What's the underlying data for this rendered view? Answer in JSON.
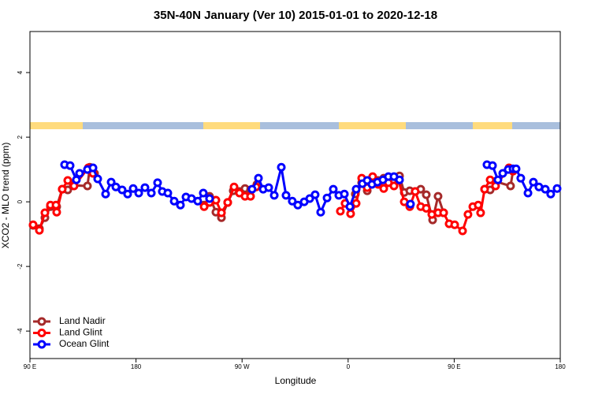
{
  "chart_data": {
    "type": "line",
    "title": "35N-40N January (Ver 10)   2015-01-01 to 2020-12-18",
    "xlabel": "Longitude",
    "ylabel": "XCO2 - MLO trend (ppm)",
    "xlim": [
      90,
      540
    ],
    "ylim": [
      -4.85,
      5.27
    ],
    "xticks": [
      {
        "value": 90,
        "label": "90 E"
      },
      {
        "value": 180,
        "label": "180"
      },
      {
        "value": 270,
        "label": "90 W"
      },
      {
        "value": 360,
        "label": "0"
      },
      {
        "value": 450,
        "label": "90 E"
      },
      {
        "value": 540,
        "label": "180"
      }
    ],
    "yticks": [
      -4,
      -2,
      0,
      2,
      4
    ],
    "legend": "bottom-left",
    "series": [
      {
        "name": "Land Nadir",
        "color": "#a52a2a",
        "x": [
          92.7,
          98.0,
          102.7,
          107.4,
          112.7,
          117.4,
          122.1,
          126.8,
          138.8,
          140.8,
          144.8,
          null,
          237.8,
          242.4,
          247.8,
          252.5,
          257.8,
          262.5,
          267.8,
          272.5,
          277.2,
          282.6,
          null,
          366.1,
          371.5,
          376.2,
          380.8,
          385.5,
          390.2,
          394.2,
          398.9,
          403.6,
          407.6,
          412.3,
          416.9,
          421.6,
          426.3,
          431.7,
          436.3,
          441.0,
          null,
          475.8,
          480.5,
          485.1,
          497.8,
          499.9
        ],
        "values": [
          -0.73,
          -0.83,
          -0.49,
          -0.15,
          -0.15,
          0.39,
          0.37,
          0.51,
          0.49,
          1.07,
          0.88,
          null,
          -0.1,
          0.17,
          -0.32,
          -0.49,
          -0.02,
          0.34,
          0.32,
          0.41,
          0.37,
          0.54,
          null,
          0.24,
          0.59,
          0.34,
          0.59,
          0.66,
          0.73,
          0.63,
          0.63,
          0.8,
          0.29,
          0.34,
          0.32,
          0.39,
          0.22,
          -0.56,
          0.17,
          -0.34,
          null,
          0.39,
          0.37,
          0.63,
          0.49,
          0.95
        ]
      },
      {
        "name": "Land Glint",
        "color": "#ff0000",
        "x": [
          92.7,
          98.0,
          102.7,
          107.4,
          112.1,
          112.7,
          117.4,
          122.1,
          127.4,
          139.5,
          143.5,
          null,
          237.8,
          242.4,
          247.8,
          252.5,
          257.8,
          263.2,
          267.8,
          272.5,
          277.2,
          281.9,
          null,
          353.4,
          357.4,
          362.1,
          366.8,
          371.5,
          376.2,
          380.8,
          385.5,
          390.2,
          394.2,
          398.9,
          402.9,
          407.6,
          412.3,
          416.9,
          421.6,
          426.3,
          431.0,
          436.3,
          441.0,
          445.7,
          450.4,
          457.1,
          461.7,
          465.8,
          470.4,
          472.4,
          475.8,
          480.5,
          485.1,
          496.5,
          499.9
        ],
        "values": [
          -0.71,
          -0.88,
          -0.34,
          -0.1,
          -0.1,
          -0.32,
          0.39,
          0.66,
          0.49,
          1.05,
          0.88,
          null,
          -0.15,
          -0.02,
          0.05,
          -0.34,
          -0.02,
          0.46,
          0.27,
          0.17,
          0.17,
          0.46,
          null,
          -0.29,
          -0.05,
          -0.37,
          -0.05,
          0.73,
          0.44,
          0.78,
          0.54,
          0.41,
          0.59,
          0.49,
          0.66,
          0.0,
          -0.15,
          0.32,
          -0.15,
          -0.2,
          -0.39,
          -0.34,
          -0.34,
          -0.68,
          -0.71,
          -0.9,
          -0.39,
          -0.15,
          -0.1,
          -0.34,
          0.39,
          0.68,
          0.49,
          1.05,
          0.95
        ]
      },
      {
        "name": "Ocean Glint",
        "color": "#0000ff",
        "x": [
          119.4,
          124.1,
          129.4,
          132.1,
          138.8,
          143.5,
          147.5,
          154.2,
          158.9,
          162.9,
          168.2,
          172.9,
          177.6,
          182.3,
          187.6,
          193.0,
          198.3,
          202.3,
          207.0,
          212.4,
          217.7,
          222.4,
          227.1,
          232.4,
          237.1,
          242.4,
          null,
          278.5,
          283.9,
          287.9,
          292.6,
          297.3,
          303.3,
          307.3,
          312.6,
          317.3,
          322.7,
          327.4,
          332.0,
          336.7,
          342.1,
          347.4,
          352.1,
          356.8,
          361.5,
          366.8,
          372.1,
          376.2,
          380.2,
          384.9,
          389.5,
          394.2,
          398.9,
          403.6,
          null,
          412.9,
          null,
          477.8,
          482.5,
          487.1,
          491.2,
          495.8,
          499.9,
          502.5,
          506.5,
          512.6,
          517.2,
          521.9,
          527.3,
          531.9,
          537.3
        ],
        "values": [
          1.15,
          1.12,
          0.68,
          0.88,
          1.0,
          1.05,
          0.71,
          0.24,
          0.61,
          0.46,
          0.37,
          0.24,
          0.41,
          0.27,
          0.44,
          0.27,
          0.59,
          0.32,
          0.27,
          0.02,
          -0.1,
          0.15,
          0.1,
          0.02,
          0.27,
          0.1,
          null,
          0.39,
          0.73,
          0.39,
          0.44,
          0.2,
          1.07,
          0.2,
          0.02,
          -0.1,
          0.0,
          0.1,
          0.22,
          -0.32,
          0.12,
          0.39,
          0.2,
          0.24,
          -0.15,
          0.39,
          0.56,
          0.66,
          0.54,
          0.61,
          0.68,
          0.78,
          0.78,
          0.68,
          null,
          -0.07,
          null,
          1.15,
          1.12,
          0.68,
          0.88,
          1.0,
          1.02,
          1.02,
          0.73,
          0.27,
          0.61,
          0.46,
          0.39,
          0.24,
          0.41
        ]
      }
    ]
  }
}
